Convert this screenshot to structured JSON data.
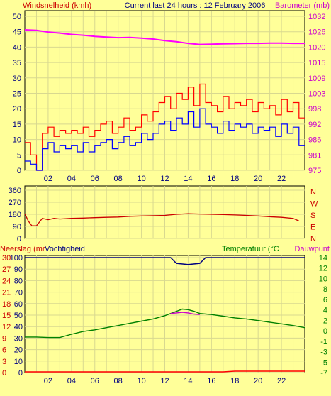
{
  "title": "Current last 24 hours : 12 February 2006",
  "colors": {
    "background": "#ffff99",
    "grid": "#d8d890",
    "wind_gust": "#ff0000",
    "wind_avg": "#0000ff",
    "barometer": "#ff00ff",
    "direction": "#cc0000",
    "humidity": "#000080",
    "rain": "#ff0000",
    "temperature": "#008000",
    "dewpoint": "#cc00cc"
  },
  "chart_data": [
    {
      "type": "line",
      "name": "wind-barometer",
      "title": "Current last 24 hours : 12 February 2006",
      "ylabel_left": "Windsnelheid (kmh)",
      "ylabel_right": "Barometer (mb)",
      "x_ticks": [
        "02",
        "04",
        "06",
        "08",
        "10",
        "12",
        "14",
        "16",
        "18",
        "20",
        "22"
      ],
      "y_left_ticks": [
        "0",
        "5",
        "10",
        "15",
        "20",
        "25",
        "30",
        "35",
        "40",
        "45",
        "50"
      ],
      "y_right_ticks": [
        "975",
        "981",
        "986",
        "992",
        "998",
        "1003",
        "1009",
        "1015",
        "1020",
        "1026",
        "1032"
      ],
      "ylim_left": [
        0,
        50
      ],
      "ylim_right": [
        975,
        1032
      ],
      "xlim": [
        0,
        24
      ],
      "series": [
        {
          "key": "gust",
          "x": [
            0,
            0.5,
            1,
            1.5,
            2,
            2.5,
            3,
            3.5,
            4,
            4.5,
            5,
            5.5,
            6,
            6.5,
            7,
            7.5,
            8,
            8.5,
            9,
            9.5,
            10,
            10.5,
            11,
            11.5,
            12,
            12.5,
            13,
            13.5,
            14,
            14.5,
            15,
            15.5,
            16,
            16.5,
            17,
            17.5,
            18,
            18.5,
            19,
            19.5,
            20,
            20.5,
            21,
            21.5,
            22,
            22.5,
            23,
            23.5
          ],
          "values": [
            9,
            5,
            0,
            12,
            14,
            11,
            13,
            12,
            13,
            12,
            14,
            11,
            13,
            15,
            16,
            12,
            14,
            17,
            13,
            14,
            18,
            16,
            19,
            22,
            24,
            20,
            25,
            23,
            27,
            21,
            28,
            22,
            21,
            19,
            24,
            20,
            22,
            21,
            23,
            19,
            22,
            20,
            21,
            18,
            23,
            19,
            22,
            17
          ]
        },
        {
          "key": "avg",
          "x": [
            0,
            0.5,
            1,
            1.5,
            2,
            2.5,
            3,
            3.5,
            4,
            4.5,
            5,
            5.5,
            6,
            6.5,
            7,
            7.5,
            8,
            8.5,
            9,
            9.5,
            10,
            10.5,
            11,
            11.5,
            12,
            12.5,
            13,
            13.5,
            14,
            14.5,
            15,
            15.5,
            16,
            16.5,
            17,
            17.5,
            18,
            18.5,
            19,
            19.5,
            20,
            20.5,
            21,
            21.5,
            22,
            22.5,
            23,
            23.5
          ],
          "values": [
            3,
            2,
            0,
            7,
            9,
            6,
            8,
            7,
            8,
            6,
            9,
            6,
            8,
            9,
            10,
            7,
            9,
            11,
            8,
            9,
            12,
            10,
            12,
            15,
            16,
            13,
            17,
            15,
            19,
            14,
            20,
            15,
            14,
            12,
            16,
            13,
            15,
            14,
            15,
            12,
            14,
            13,
            14,
            11,
            15,
            12,
            14,
            8
          ]
        },
        {
          "key": "barometer",
          "x": [
            0,
            1,
            2,
            3,
            4,
            5,
            6,
            7,
            8,
            9,
            10,
            11,
            12,
            13,
            14,
            15,
            16,
            17,
            18,
            19,
            20,
            21,
            22,
            23,
            24
          ],
          "values": [
            1027,
            1026.8,
            1026.2,
            1025.8,
            1025.3,
            1025.0,
            1024.6,
            1024.3,
            1024.1,
            1024.2,
            1023.9,
            1023.6,
            1023.0,
            1022.6,
            1022.0,
            1021.6,
            1021.7,
            1021.8,
            1021.9,
            1022.0,
            1022.0,
            1022.1,
            1022.1,
            1022.0,
            1022.0
          ]
        }
      ]
    },
    {
      "type": "line",
      "name": "wind-direction",
      "y_left_ticks": [
        "0",
        "90",
        "180",
        "270",
        "360"
      ],
      "y_right_ticks": [
        "N",
        "E",
        "S",
        "W",
        "N"
      ],
      "ylim": [
        0,
        360
      ],
      "xlim": [
        0,
        24
      ],
      "series": [
        {
          "key": "direction",
          "x": [
            0,
            0.3,
            0.6,
            1,
            1.5,
            2,
            2.5,
            3,
            4,
            5,
            6,
            7,
            8,
            9,
            10,
            11,
            12,
            13,
            14,
            15,
            16,
            17,
            18,
            19,
            20,
            21,
            22,
            23,
            23.5
          ],
          "values": [
            185,
            130,
            95,
            95,
            150,
            140,
            150,
            145,
            150,
            152,
            155,
            158,
            160,
            165,
            168,
            170,
            172,
            180,
            185,
            182,
            180,
            178,
            175,
            172,
            168,
            162,
            158,
            150,
            130
          ]
        }
      ]
    },
    {
      "type": "line",
      "name": "rain-humidity-temperature",
      "ylabel_left_a": "Neerslag (mr",
      "ylabel_left_b": "Vochtigheid",
      "ylabel_right_a": "Temperatuur (°C",
      "ylabel_right_b": "Dauwpunt",
      "x_ticks": [
        "02",
        "04",
        "06",
        "08",
        "10",
        "12",
        "14",
        "16",
        "18",
        "20",
        "22"
      ],
      "y_rain_ticks": [
        "0",
        "3",
        "6",
        "9",
        "12",
        "15",
        "18",
        "21",
        "24",
        "27",
        "30"
      ],
      "y_hum_ticks": [
        "0",
        "10",
        "20",
        "30",
        "40",
        "50",
        "60",
        "70",
        "80",
        "90",
        "100"
      ],
      "y_right_ticks": [
        "-7",
        "-5",
        "-3",
        "-1",
        "0",
        "2",
        "4",
        "6",
        "8",
        "10",
        "12",
        "14"
      ],
      "ylim_right": [
        -7,
        14
      ],
      "xlim": [
        0,
        24
      ],
      "series": [
        {
          "key": "humidity",
          "x": [
            0,
            12.5,
            13,
            14,
            15,
            15.5,
            24
          ],
          "values": [
            100,
            100,
            95,
            94,
            95,
            100,
            100
          ]
        },
        {
          "key": "rain",
          "x": [
            0,
            17,
            18,
            24
          ],
          "values": [
            0,
            0,
            0.2,
            0.2
          ]
        },
        {
          "key": "temperature",
          "x": [
            0,
            1,
            2,
            3,
            4,
            5,
            6,
            7,
            8,
            9,
            10,
            11,
            12,
            13,
            13.5,
            14,
            14.5,
            15,
            16,
            17,
            18,
            19,
            20,
            21,
            22,
            23,
            24
          ],
          "values": [
            -0.5,
            -0.5,
            -0.6,
            -0.6,
            0,
            0.5,
            0.8,
            1.2,
            1.6,
            2,
            2.4,
            2.8,
            3.4,
            4.2,
            4.6,
            4.5,
            4.2,
            3.8,
            3.6,
            3.3,
            3,
            2.8,
            2.5,
            2.2,
            1.9,
            1.6,
            1.2
          ]
        },
        {
          "key": "dewpoint",
          "x": [
            12.5,
            13,
            13.5,
            14,
            14.5,
            15
          ],
          "values": [
            3.8,
            3.9,
            4.0,
            3.9,
            3.7,
            3.6
          ]
        }
      ]
    }
  ]
}
